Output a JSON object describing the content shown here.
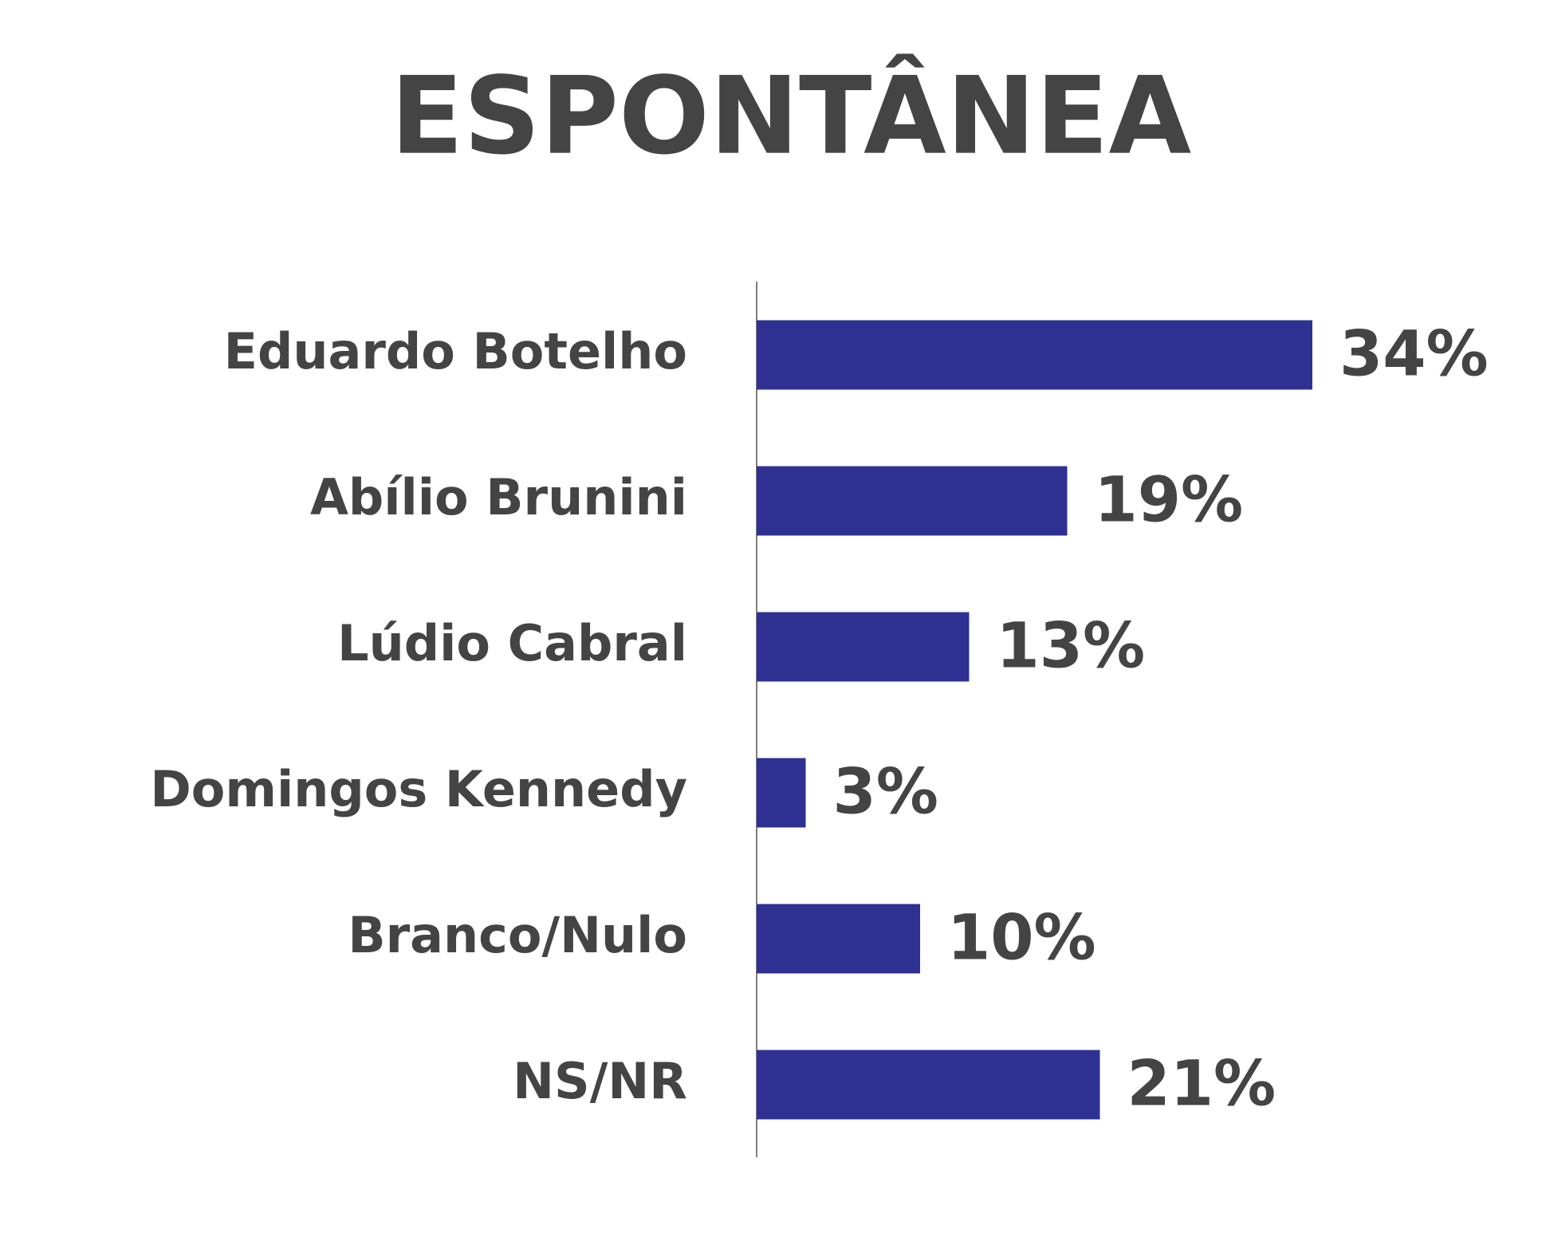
{
  "chart_data": {
    "type": "hbar",
    "title": "ESPONTÂNEA",
    "categories": [
      "Eduardo Botelho",
      "Abílio Brunini",
      "Lúdio Cabral",
      "Domingos Kennedy",
      "Branco/Nulo",
      "NS/NR"
    ],
    "values": [
      34,
      19,
      13,
      3,
      10,
      21
    ],
    "value_labels": [
      "34%",
      "19%",
      "13%",
      "3%",
      "10%",
      "21%"
    ],
    "color": "#2e3192"
  }
}
